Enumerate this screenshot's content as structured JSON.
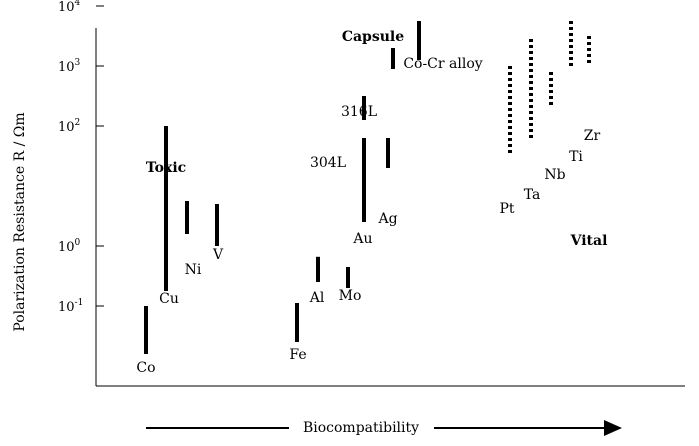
{
  "chart_data": {
    "type": "range",
    "ylabel": "Polarization Resistance R / Ωm",
    "yscale": "log",
    "ylim_log10": [
      -2.2,
      5.0
    ],
    "ytick_labels": [
      {
        "text": "10",
        "exp": "-1",
        "log10": -1
      },
      {
        "text": "10",
        "exp": "0",
        "log10": 0
      },
      {
        "text": "10",
        "exp": "2",
        "log10": 2
      },
      {
        "text": "10",
        "exp": "3",
        "log10": 3
      },
      {
        "text": "10",
        "exp": "4",
        "log10": 4
      }
    ],
    "xlabel": "Biocompatibility",
    "group_labels": [
      {
        "key": "toxic",
        "text": "Toxic"
      },
      {
        "key": "capsule",
        "text": "Capsule"
      },
      {
        "key": "vital",
        "text": "Vital"
      }
    ],
    "series": [
      {
        "name": "Toxic",
        "group": "toxic",
        "style": "solid",
        "materials": [
          {
            "label": "Co",
            "low": -1.8,
            "high": -1.0
          },
          {
            "label": "Cu",
            "low": -0.75,
            "high": 2.0
          },
          {
            "label": "Ni",
            "low": 0.2,
            "high": 0.75
          },
          {
            "label": "V",
            "low": 0.0,
            "high": 0.7
          }
        ]
      },
      {
        "name": "Capsule",
        "group": "capsule",
        "style": "solid",
        "materials": [
          {
            "label": "Fe",
            "low": -1.6,
            "high": -0.95
          },
          {
            "label": "Al",
            "low": -0.6,
            "high": -0.18
          },
          {
            "label": "Mo",
            "low": -0.7,
            "high": -0.35
          },
          {
            "label": "Au",
            "low": 0.4,
            "high": 1.8
          },
          {
            "label": "Ag",
            "low": 1.3,
            "high": 1.8
          },
          {
            "label": "304L",
            "low": 2.1,
            "high": 2.5
          },
          {
            "label": "316L",
            "low": 2.95,
            "high": 3.3
          },
          {
            "label": "Co-Cr alloy",
            "low": 3.1,
            "high": 3.75
          }
        ]
      },
      {
        "name": "Vital",
        "group": "vital",
        "style": "dotted",
        "materials": [
          {
            "label": "Pt",
            "low": 1.55,
            "high": 3.0
          },
          {
            "label": "Ta",
            "low": 1.8,
            "high": 3.45
          },
          {
            "label": "Nb",
            "low": 2.35,
            "high": 2.9
          },
          {
            "label": "Ti",
            "low": 2.95,
            "high": 3.75
          },
          {
            "label": "Zr",
            "low": 3.05,
            "high": 3.5
          }
        ]
      }
    ]
  }
}
